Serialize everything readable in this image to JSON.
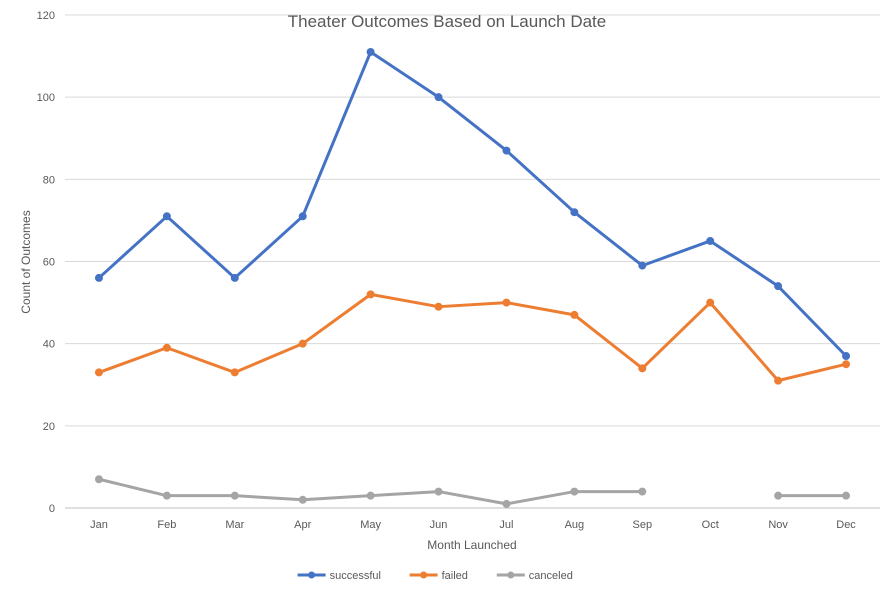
{
  "chart_data": {
    "type": "line",
    "title": "Theater Outcomes Based on Launch Date",
    "xlabel": "Month Launched",
    "ylabel": "Count of Outcomes",
    "categories": [
      "Jan",
      "Feb",
      "Mar",
      "Apr",
      "May",
      "Jun",
      "Jul",
      "Aug",
      "Sep",
      "Oct",
      "Nov",
      "Dec"
    ],
    "ylim": [
      0,
      120
    ],
    "yticks": [
      "0",
      "20",
      "40",
      "60",
      "80",
      "100",
      "120"
    ],
    "grid": "horizontal",
    "legend_position": "bottom",
    "series": [
      {
        "name": "successful",
        "color": "#4472C4",
        "values": [
          56,
          71,
          56,
          71,
          111,
          100,
          87,
          72,
          59,
          65,
          54,
          37
        ]
      },
      {
        "name": "failed",
        "color": "#ED7D31",
        "values": [
          33,
          39,
          33,
          40,
          52,
          49,
          50,
          47,
          34,
          50,
          31,
          35
        ]
      },
      {
        "name": "canceled",
        "color": "#A5A5A5",
        "values": [
          7,
          3,
          3,
          2,
          3,
          4,
          1,
          4,
          4,
          null,
          3,
          3
        ]
      }
    ]
  }
}
